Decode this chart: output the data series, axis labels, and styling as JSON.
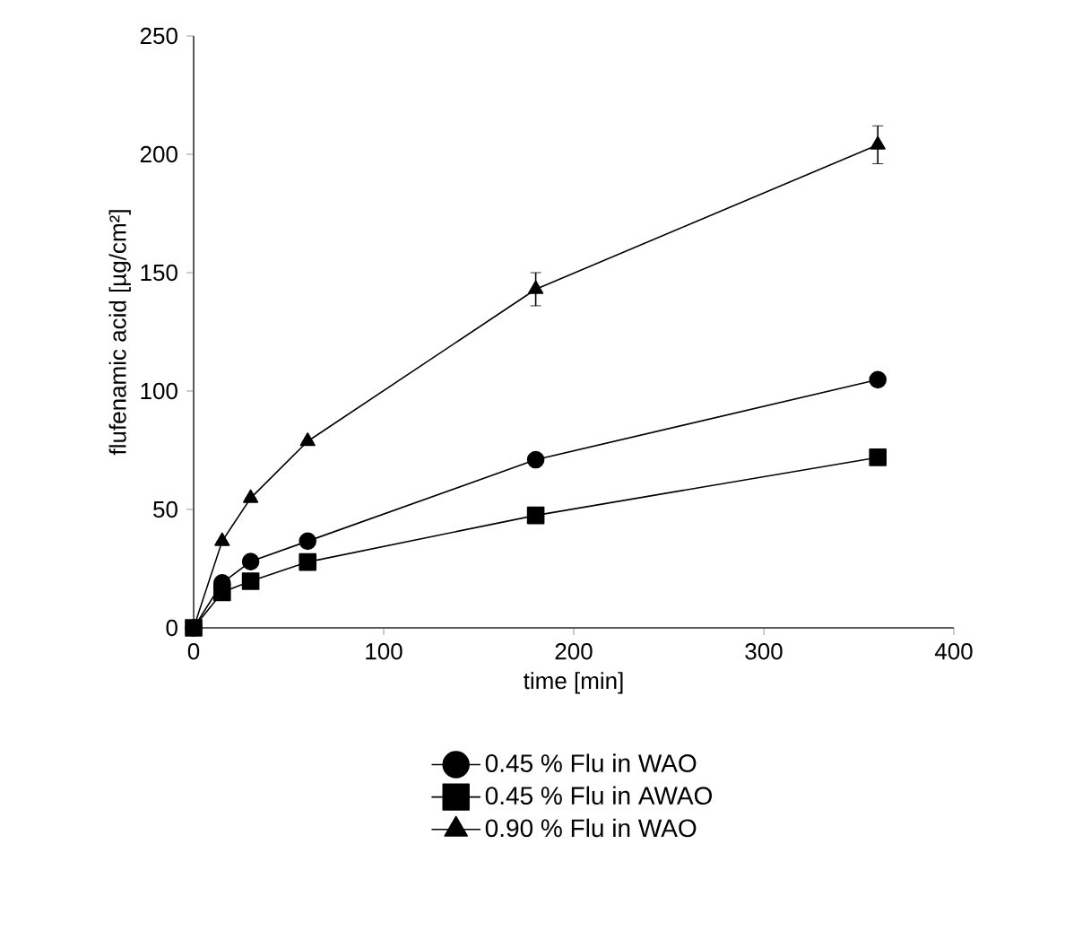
{
  "chart_data": {
    "type": "line",
    "xlabel": "time [min]",
    "ylabel": "flufenamic acid [µg/cm²]",
    "x": [
      0,
      15,
      30,
      60,
      180,
      360
    ],
    "series": [
      {
        "name": "0.45 % Flu in WAO",
        "color": "#000000",
        "marker": "circle",
        "values": [
          0,
          19,
          28,
          36.6,
          71,
          104.8
        ]
      },
      {
        "name": "0.45 % Flu in AWAO",
        "color": "#000000",
        "marker": "square",
        "values": [
          0,
          15,
          19.7,
          27.8,
          47.5,
          72
        ]
      },
      {
        "name": "0.90 % Flu in WAO",
        "color": "#000000",
        "marker": "triangle",
        "values": [
          0,
          36.6,
          54.8,
          78.8,
          143,
          204
        ],
        "errors": [
          null,
          null,
          null,
          null,
          7,
          8
        ]
      }
    ],
    "xlim": [
      0,
      400
    ],
    "ylim": [
      0,
      250
    ],
    "xticks": [
      0,
      100,
      200,
      300,
      400
    ],
    "yticks": [
      0,
      50,
      100,
      150,
      200,
      250
    ],
    "grid": false,
    "legend": "bottom",
    "line_style": "solid"
  }
}
